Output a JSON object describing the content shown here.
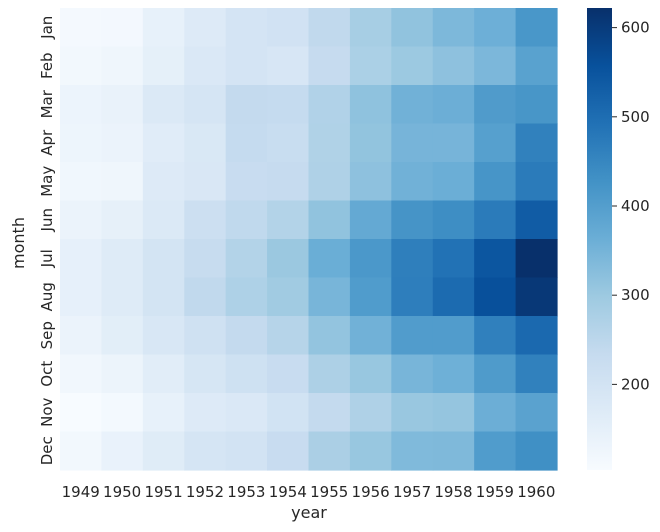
{
  "chart_data": {
    "type": "heatmap",
    "xlabel": "year",
    "ylabel": "month",
    "x": [
      "1949",
      "1950",
      "1951",
      "1952",
      "1953",
      "1954",
      "1955",
      "1956",
      "1957",
      "1958",
      "1959",
      "1960"
    ],
    "y": [
      "Jan",
      "Feb",
      "Mar",
      "Apr",
      "May",
      "Jun",
      "Jul",
      "Aug",
      "Sep",
      "Oct",
      "Nov",
      "Dec"
    ],
    "values": [
      [
        112,
        115,
        145,
        171,
        196,
        204,
        242,
        284,
        315,
        340,
        360,
        417
      ],
      [
        118,
        126,
        150,
        180,
        196,
        188,
        233,
        277,
        301,
        318,
        342,
        391
      ],
      [
        132,
        141,
        178,
        193,
        236,
        235,
        267,
        317,
        356,
        362,
        406,
        419
      ],
      [
        129,
        135,
        163,
        181,
        235,
        227,
        269,
        313,
        348,
        348,
        396,
        461
      ],
      [
        121,
        125,
        172,
        183,
        229,
        234,
        270,
        318,
        355,
        363,
        420,
        472
      ],
      [
        135,
        149,
        178,
        218,
        243,
        264,
        315,
        374,
        422,
        435,
        472,
        535
      ],
      [
        148,
        170,
        199,
        230,
        264,
        302,
        364,
        413,
        465,
        491,
        548,
        622
      ],
      [
        148,
        170,
        199,
        242,
        272,
        293,
        347,
        405,
        467,
        505,
        559,
        606
      ],
      [
        136,
        158,
        184,
        209,
        237,
        259,
        312,
        355,
        404,
        404,
        463,
        508
      ],
      [
        119,
        133,
        162,
        191,
        211,
        229,
        274,
        306,
        347,
        359,
        407,
        461
      ],
      [
        104,
        114,
        146,
        172,
        180,
        203,
        237,
        271,
        305,
        310,
        362,
        390
      ],
      [
        118,
        140,
        166,
        194,
        201,
        229,
        278,
        306,
        336,
        337,
        405,
        432
      ]
    ],
    "colorscale": "Blues",
    "colorbar": {
      "min": 104,
      "max": 622,
      "ticks": [
        200,
        300,
        400,
        500,
        600
      ]
    }
  }
}
